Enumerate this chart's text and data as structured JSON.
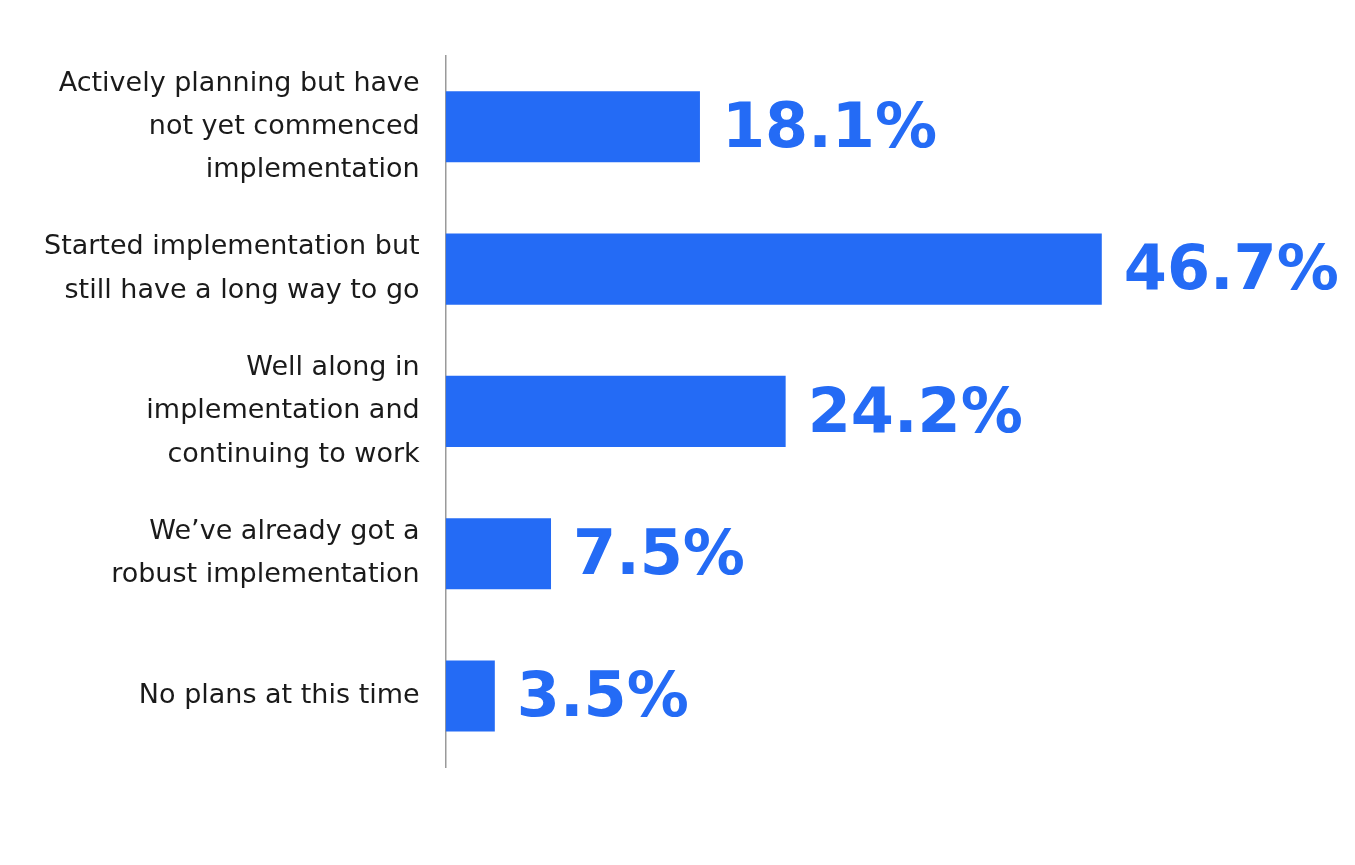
{
  "chart_data": {
    "type": "bar",
    "orientation": "horizontal",
    "categories": [
      "Actively planning but have\nnot yet commenced\nimplementation",
      "Started implementation but\nstill have a long way to go",
      "Well along in\nimplementation and\ncontinuing to work",
      "We’ve already got a\nrobust implementation",
      "No plans at this time"
    ],
    "values": [
      18.1,
      46.7,
      24.2,
      7.5,
      3.5
    ],
    "value_labels": [
      "18.1%",
      "46.7%",
      "24.2%",
      "7.5%",
      "3.5%"
    ],
    "color": "#246bf5",
    "legend": false
  }
}
